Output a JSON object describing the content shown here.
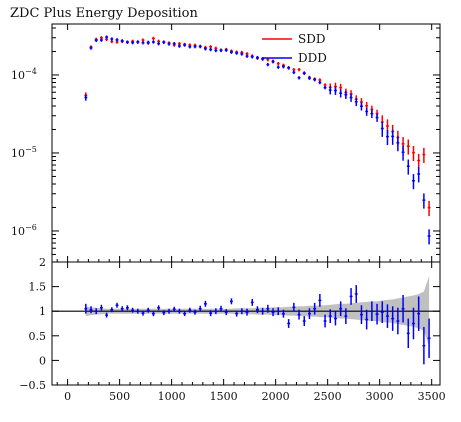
{
  "chart_data": {
    "type": "scatter",
    "title": "ZDC Plus Energy Deposition",
    "xlabel": "",
    "ylabel": "",
    "xlim": [
      -150,
      3580
    ],
    "x_ticks": [
      0,
      500,
      1000,
      1500,
      2000,
      2500,
      3000,
      3500
    ],
    "main_panel": {
      "yscale": "log",
      "ylim": [
        4e-07,
        0.00045
      ],
      "y_ticks": [
        1e-06,
        1e-05,
        0.0001
      ],
      "y_tick_labels": [
        {
          "base": "10",
          "exp": "−6"
        },
        {
          "base": "10",
          "exp": "−5"
        },
        {
          "base": "10",
          "exp": "−4"
        }
      ],
      "legend": {
        "placement": "top-right"
      },
      "series": [
        {
          "name": "SDD",
          "color": "#ff0000",
          "x": [
            175,
            225,
            275,
            325,
            375,
            425,
            475,
            525,
            575,
            625,
            675,
            725,
            775,
            825,
            875,
            925,
            975,
            1025,
            1075,
            1125,
            1175,
            1225,
            1275,
            1325,
            1375,
            1425,
            1475,
            1525,
            1575,
            1625,
            1675,
            1725,
            1775,
            1825,
            1875,
            1925,
            1975,
            2025,
            2075,
            2125,
            2175,
            2225,
            2275,
            2325,
            2375,
            2425,
            2475,
            2525,
            2575,
            2625,
            2675,
            2725,
            2775,
            2825,
            2875,
            2925,
            2975,
            3025,
            3075,
            3125,
            3175,
            3225,
            3275,
            3325,
            3375,
            3425,
            3475
          ],
          "y": [
            5.48e-05,
            0.000228,
            0.000286,
            0.0003,
            0.000286,
            0.000269,
            0.000264,
            0.000269,
            0.000264,
            0.00027,
            0.000264,
            0.00028,
            0.000256,
            0.000294,
            0.00027,
            0.000262,
            0.000257,
            0.000242,
            0.000252,
            0.000246,
            0.000242,
            0.00024,
            0.000232,
            0.000225,
            0.00023,
            0.00022,
            0.000208,
            0.000212,
            0.000202,
            0.000196,
            0.000194,
            0.000187,
            0.000175,
            0.000164,
            0.000162,
            0.000157,
            0.00015,
            0.00014,
            0.000133,
            0.000124,
            0.000117,
            0.000117,
            0.000105,
            9.3e-05,
            8.88e-05,
            8.62e-05,
            7.44e-05,
            6.94e-05,
            7.1e-05,
            6.88e-05,
            5.97e-05,
            5.7e-05,
            4.9e-05,
            4.5e-05,
            4.03e-05,
            3.61e-05,
            3.2e-05,
            2.49e-05,
            2.21e-05,
            1.88e-05,
            1.58e-05,
            1.31e-05,
            1.22e-05,
            1.01e-05,
            7.98e-06,
            9.53e-06,
            1.99e-06
          ]
        },
        {
          "name": "DDD",
          "color": "#0000ff",
          "x": [
            175,
            225,
            275,
            325,
            375,
            425,
            475,
            525,
            575,
            625,
            675,
            725,
            775,
            825,
            875,
            925,
            975,
            1025,
            1075,
            1125,
            1175,
            1225,
            1275,
            1325,
            1375,
            1425,
            1475,
            1525,
            1575,
            1625,
            1675,
            1725,
            1775,
            1825,
            1875,
            1925,
            1975,
            2025,
            2075,
            2125,
            2175,
            2225,
            2275,
            2325,
            2375,
            2425,
            2475,
            2525,
            2575,
            2625,
            2675,
            2725,
            2775,
            2825,
            2875,
            2925,
            2975,
            3025,
            3075,
            3125,
            3175,
            3225,
            3275,
            3325,
            3375,
            3425,
            3475
          ],
          "y": [
            5.14e-05,
            0.000222,
            0.000278,
            0.00028,
            0.000306,
            0.000289,
            0.000282,
            0.000274,
            0.000263,
            0.00026,
            0.000265,
            0.000259,
            0.000262,
            0.000265,
            0.000252,
            0.000264,
            0.00025,
            0.000252,
            0.000235,
            0.000242,
            0.00023,
            0.000231,
            0.000232,
            0.000217,
            0.000212,
            0.000206,
            0.000207,
            0.000208,
            0.000196,
            0.000191,
            0.000186,
            0.000174,
            0.000171,
            0.000167,
            0.00016,
            0.000136,
            0.000148,
            0.000126,
            0.000128,
            0.000123,
            0.000108,
            9.2e-05,
            0.000106,
            9.1e-05,
            8.7e-05,
            8.01e-05,
            6.88e-05,
            6.4e-05,
            6.3e-05,
            5.83e-05,
            5.59e-05,
            5.13e-05,
            4.53e-05,
            3.97e-05,
            3.4e-05,
            3.19e-05,
            2.84e-05,
            2.06e-05,
            1.62e-05,
            1.63e-05,
            1.35e-05,
            1.02e-05,
            6.76e-06,
            4.4e-06,
            5.38e-06,
            2.48e-06,
            8.6e-07
          ]
        }
      ]
    },
    "ratio_panel": {
      "ylim": [
        -0.5,
        2
      ],
      "y_ticks": [
        -0.5,
        0,
        0.5,
        1,
        1.5,
        2
      ],
      "y_tick_labels": [
        "−0.5",
        "0",
        "0.5",
        "1",
        "1.5",
        "2"
      ],
      "reference_line": 1,
      "band_color": "#c0c0c0",
      "band": {
        "x": [
          175,
          225,
          275,
          325,
          375,
          425,
          475,
          525,
          575,
          625,
          675,
          725,
          775,
          825,
          875,
          925,
          975,
          1025,
          1075,
          1125,
          1175,
          1225,
          1275,
          1325,
          1375,
          1425,
          1475,
          1525,
          1575,
          1625,
          1675,
          1725,
          1775,
          1825,
          1875,
          1925,
          1975,
          2025,
          2075,
          2125,
          2175,
          2225,
          2275,
          2325,
          2375,
          2425,
          2475,
          2525,
          2575,
          2625,
          2675,
          2725,
          2775,
          2825,
          2875,
          2925,
          2975,
          3025,
          3075,
          3125,
          3175,
          3225,
          3275,
          3325,
          3375,
          3425,
          3475
        ],
        "halfwidth": [
          0.1,
          0.08,
          0.07,
          0.06,
          0.05,
          0.05,
          0.05,
          0.05,
          0.05,
          0.05,
          0.05,
          0.05,
          0.05,
          0.05,
          0.05,
          0.05,
          0.05,
          0.05,
          0.05,
          0.05,
          0.05,
          0.05,
          0.05,
          0.05,
          0.05,
          0.05,
          0.05,
          0.05,
          0.05,
          0.06,
          0.06,
          0.06,
          0.06,
          0.07,
          0.07,
          0.07,
          0.08,
          0.08,
          0.08,
          0.09,
          0.09,
          0.1,
          0.1,
          0.11,
          0.11,
          0.12,
          0.12,
          0.13,
          0.14,
          0.15,
          0.15,
          0.16,
          0.17,
          0.18,
          0.19,
          0.2,
          0.2,
          0.22,
          0.23,
          0.24,
          0.26,
          0.28,
          0.3,
          0.32,
          0.35,
          0.4,
          0.72
        ]
      },
      "points": {
        "color": "#0000ff",
        "x": [
          175,
          225,
          275,
          325,
          375,
          425,
          475,
          525,
          575,
          625,
          675,
          725,
          775,
          825,
          875,
          925,
          975,
          1025,
          1075,
          1125,
          1175,
          1225,
          1275,
          1325,
          1375,
          1425,
          1475,
          1525,
          1575,
          1625,
          1675,
          1725,
          1775,
          1825,
          1875,
          1925,
          1975,
          2025,
          2075,
          2125,
          2175,
          2225,
          2275,
          2325,
          2375,
          2425,
          2475,
          2525,
          2575,
          2625,
          2675,
          2725,
          2775,
          2825,
          2875,
          2925,
          2975,
          3025,
          3075,
          3125,
          3175,
          3225,
          3275,
          3325,
          3375,
          3425,
          3475
        ],
        "y": [
          1.05,
          1.03,
          1.0,
          1.07,
          0.92,
          1.03,
          1.12,
          1.05,
          1.07,
          1.02,
          1.0,
          0.96,
          1.02,
          0.95,
          1.07,
          0.97,
          1.0,
          1.04,
          1.0,
          0.95,
          1.02,
          0.98,
          1.05,
          1.15,
          0.96,
          1.0,
          1.05,
          0.98,
          1.2,
          0.95,
          1.0,
          0.98,
          1.18,
          1.03,
          1.0,
          1.05,
          0.98,
          1.0,
          0.95,
          0.75,
          1.08,
          0.93,
          0.8,
          0.95,
          1.05,
          1.22,
          0.8,
          0.9,
          0.85,
          1.05,
          0.9,
          1.3,
          1.35,
          0.93,
          0.83,
          1.0,
          0.94,
          0.98,
          0.9,
          0.85,
          0.8,
          1.05,
          0.55,
          0.75,
          0.95,
          0.3,
          0.45
        ],
        "err": [
          0.1,
          0.07,
          0.06,
          0.06,
          0.05,
          0.05,
          0.05,
          0.05,
          0.05,
          0.05,
          0.05,
          0.05,
          0.05,
          0.05,
          0.05,
          0.05,
          0.05,
          0.05,
          0.05,
          0.05,
          0.05,
          0.05,
          0.06,
          0.06,
          0.06,
          0.06,
          0.06,
          0.06,
          0.06,
          0.06,
          0.06,
          0.07,
          0.07,
          0.07,
          0.07,
          0.08,
          0.08,
          0.08,
          0.08,
          0.09,
          0.09,
          0.1,
          0.1,
          0.11,
          0.12,
          0.13,
          0.13,
          0.14,
          0.14,
          0.15,
          0.16,
          0.17,
          0.18,
          0.19,
          0.2,
          0.2,
          0.21,
          0.22,
          0.24,
          0.25,
          0.27,
          0.28,
          0.3,
          0.32,
          0.35,
          0.38,
          0.4
        ]
      }
    }
  }
}
